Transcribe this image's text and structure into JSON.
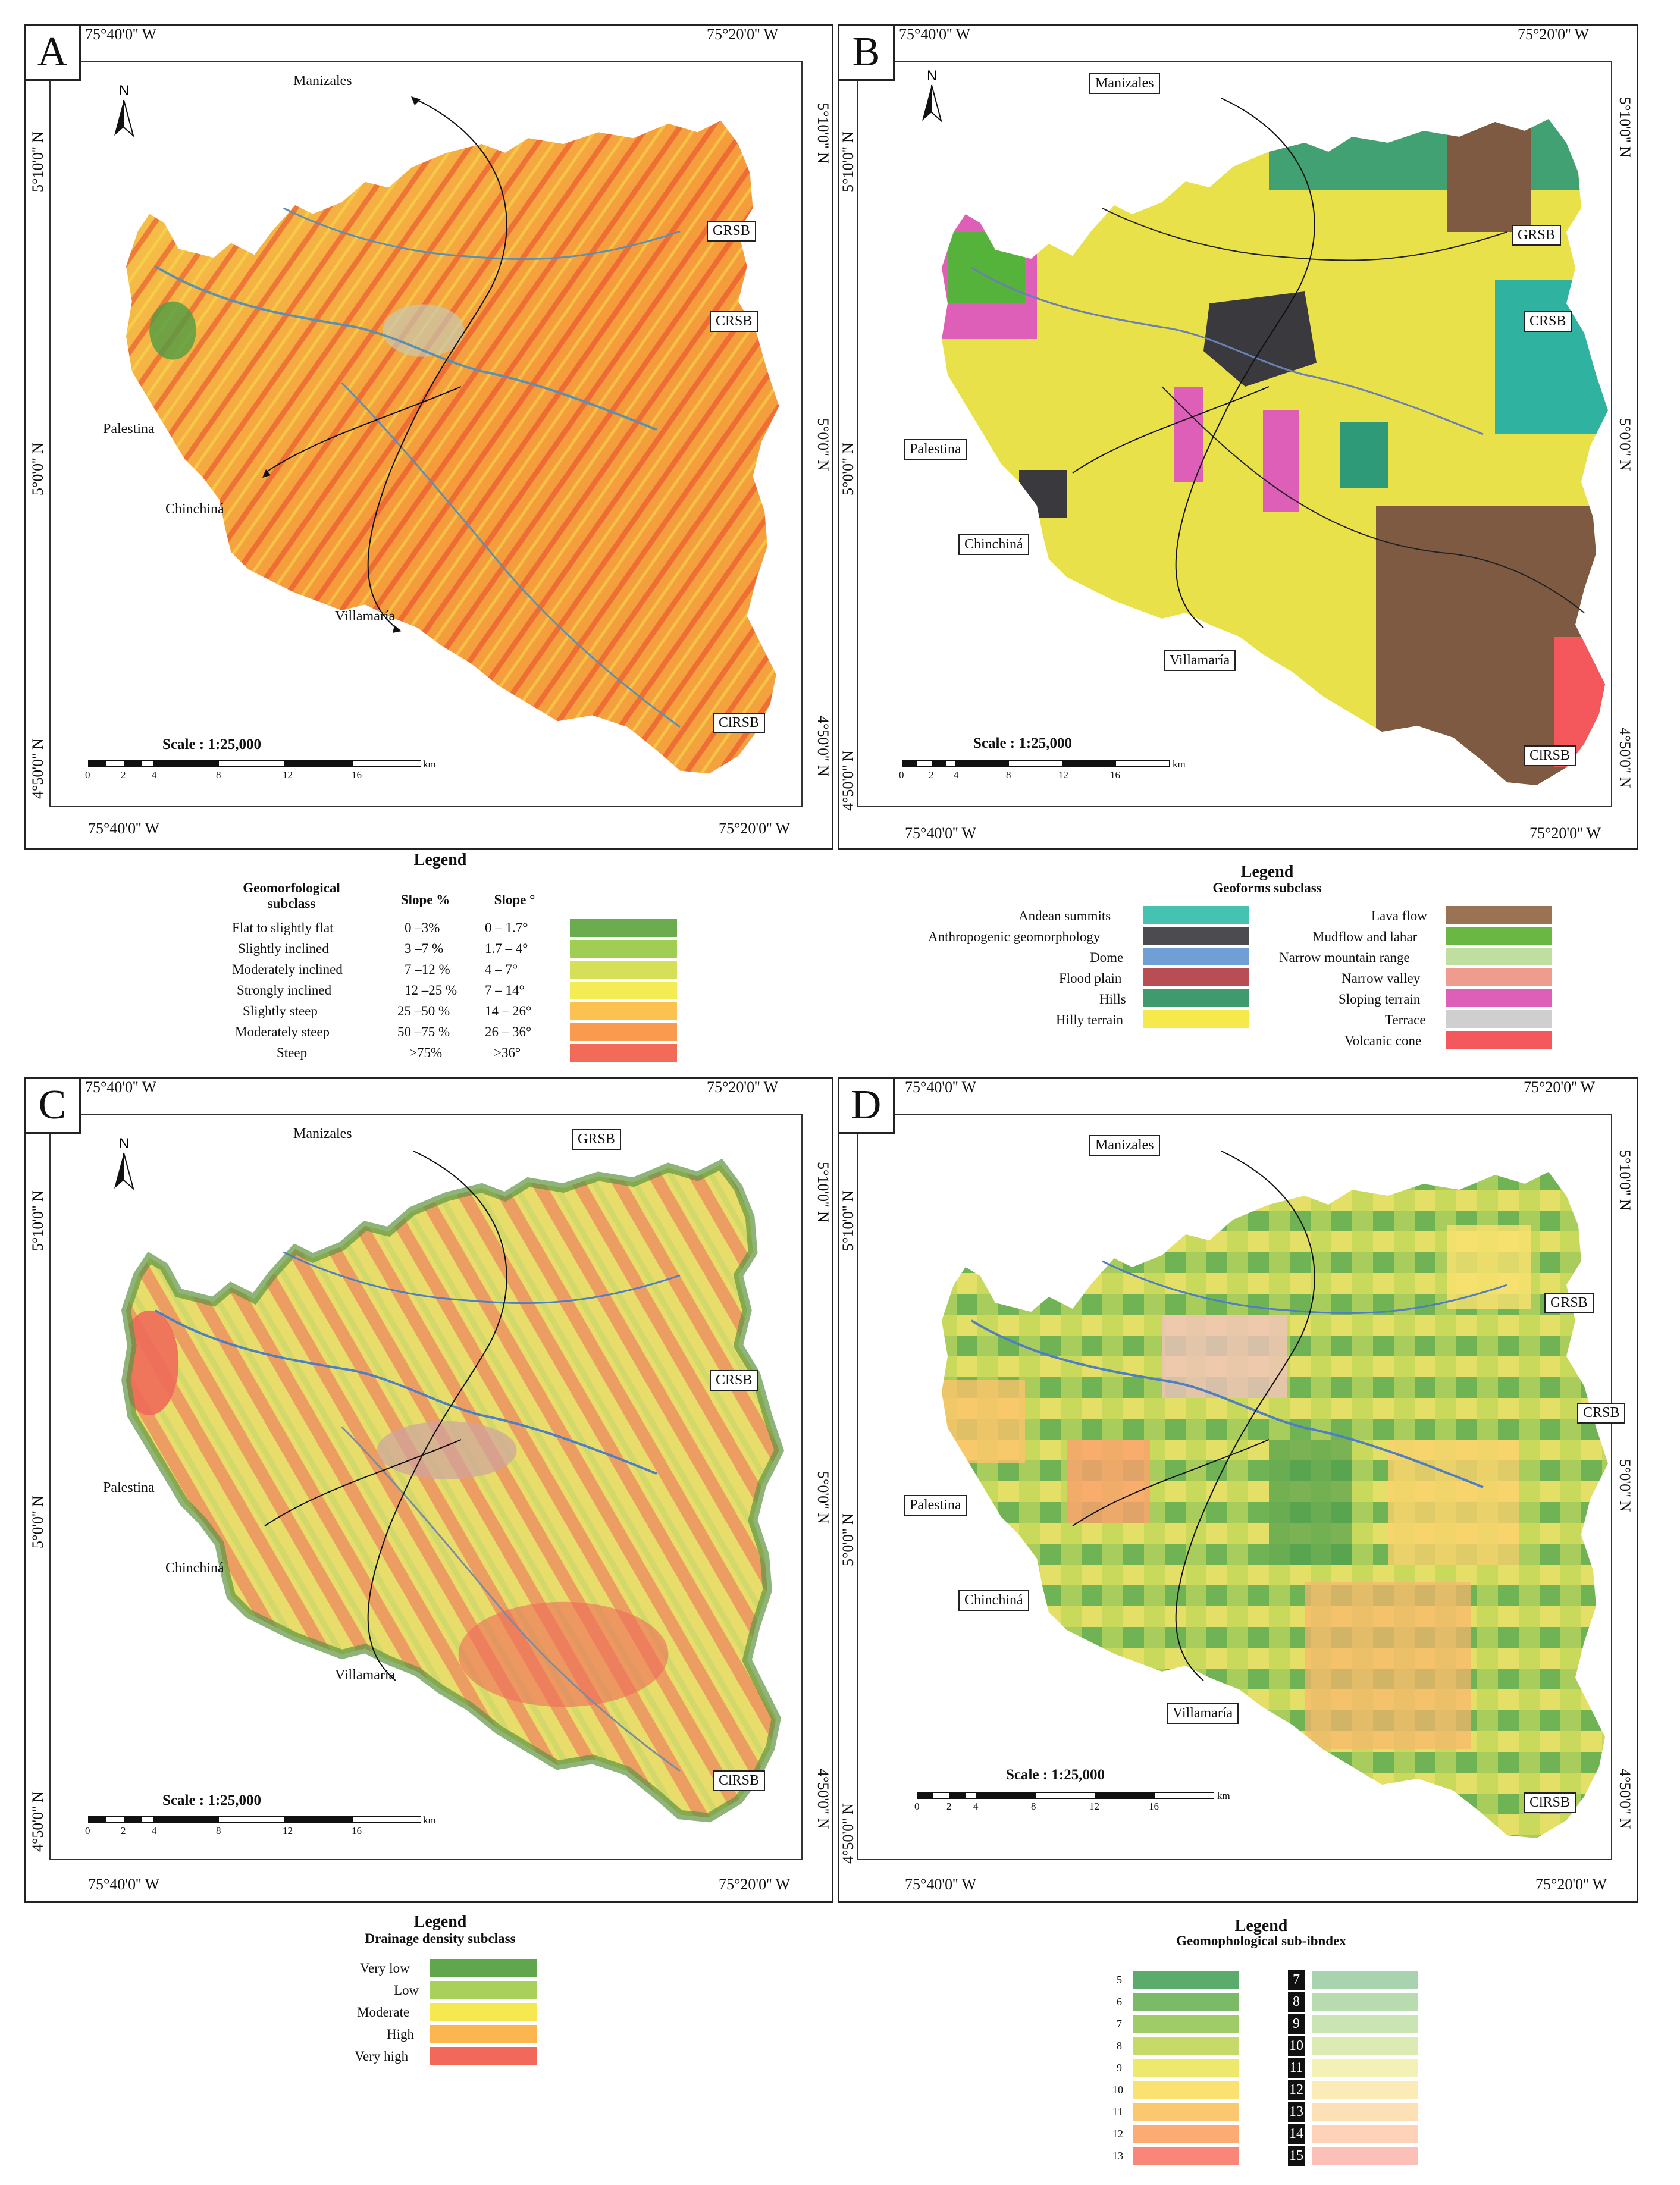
{
  "panels": {
    "a": {
      "letter": "A",
      "coord_top_left": "75°40'0'' W",
      "coord_top_right": "75°20'0'' W",
      "coord_bottom_left": "75°40'0'' W",
      "coord_bottom_right": "75°20'0'' W",
      "lat_upper": "5°10'0'' N",
      "lat_mid": "5°0'0'' N",
      "lat_lower": "4°50'0'' N",
      "place_manizales": "Manizales",
      "place_grsb": "GRSB",
      "place_crsb": "CRSB",
      "place_palestina": "Palestina",
      "place_chinchina": "Chinchiná",
      "place_villamaria": "Villamaría",
      "place_clrsb": "ClRSB",
      "north": "N"
    },
    "b": {
      "letter": "B",
      "coord_top_left": "75°40'0'' W",
      "coord_top_right": "75°20'0'' W",
      "coord_bottom_left": "75°40'0'' W",
      "coord_bottom_right": "75°20'0'' W",
      "lat_upper": "5°10'0'' N",
      "lat_mid": "5°0'0'' N",
      "lat_lower": "4°50'0'' N",
      "place_manizales": "Manizales",
      "place_grsb": "GRSB",
      "place_crsb": "CRSB",
      "place_palestina": "Palestina",
      "place_chinchina": "Chinchiná",
      "place_villamaria": "Villamaría",
      "place_clrsb": "ClRSB",
      "north": "N"
    },
    "c": {
      "letter": "C",
      "coord_top_left": "75°40'0'' W",
      "coord_top_right": "75°20'0'' W",
      "coord_bottom_left": "75°40'0'' W",
      "coord_bottom_right": "75°20'0'' W",
      "lat_upper": "5°10'0'' N",
      "lat_mid": "5°0'0'' N",
      "lat_lower": "4°50'0'' N",
      "place_manizales": "Manizales",
      "place_grsb": "GRSB",
      "place_crsb": "CRSB",
      "place_palestina": "Palestina",
      "place_chinchina": "Chinchiná",
      "place_villamaria": "Villamaria",
      "place_clrsb": "ClRSB",
      "north": "N"
    },
    "d": {
      "letter": "D",
      "coord_top_left": "75°40'0'' W",
      "coord_top_right": "75°20'0'' W",
      "coord_bottom_left": "75°40'0'' W",
      "coord_bottom_right": "75°20'0'' W",
      "lat_upper": "5°10'0'' N",
      "lat_mid": "5°0'0'' N",
      "lat_lower": "4°50'0'' N",
      "place_manizales": "Manizales",
      "place_grsb": "GRSB",
      "place_crsb": "CRSB",
      "place_palestina": "Palestina",
      "place_chinchina": "Chinchiná",
      "place_villamaria": "Villamaría",
      "place_clrsb": "ClRSB"
    }
  },
  "scale": {
    "title": "Scale : 1:25,000",
    "ticks": [
      "0",
      "2",
      "4",
      "8",
      "12",
      "16"
    ],
    "unit": "km"
  },
  "legend_a": {
    "title": "Legend",
    "col_class": "Geomorfological subclass",
    "col_pct": "Slope %",
    "col_deg": "Slope °",
    "rows": [
      {
        "label": "Flat to slightly flat",
        "pct": "0 –3%",
        "deg": "0 – 1.7°",
        "color": "#6aac4e"
      },
      {
        "label": "Slightly inclined",
        "pct": "3 –7 %",
        "deg": "1.7 – 4°",
        "color": "#9fce52"
      },
      {
        "label": "Moderately inclined",
        "pct": "7 –12 %",
        "deg": "4 – 7°",
        "color": "#d6df58"
      },
      {
        "label": "Strongly inclined",
        "pct": "12 –25 %",
        "deg": "7 – 14°",
        "color": "#f4ec55"
      },
      {
        "label": "Slightly steep",
        "pct": "25 –50 %",
        "deg": "14 – 26°",
        "color": "#fbc24f"
      },
      {
        "label": "Moderately steep",
        "pct": "50 –75 %",
        "deg": "26 – 36°",
        "color": "#f99a4e"
      },
      {
        "label": "Steep",
        "pct": ">75%",
        "deg": ">36°",
        "color": "#f26b59"
      }
    ]
  },
  "legend_b": {
    "title": "Legend",
    "subtitle": "Geoforms subclass",
    "left": [
      {
        "label": "Andean summits",
        "color": "#45c2b0"
      },
      {
        "label": "Anthropogenic geomorphology",
        "color": "#4b4b50"
      },
      {
        "label": "Dome",
        "color": "#6f9fd4"
      },
      {
        "label": "Flood plain",
        "color": "#b84e53"
      },
      {
        "label": "Hills",
        "color": "#3f9a6e"
      },
      {
        "label": "Hilly terrain",
        "color": "#f5e94c"
      }
    ],
    "right": [
      {
        "label": "Lava flow",
        "color": "#9a7254"
      },
      {
        "label": "Mudflow and lahar",
        "color": "#6ab843"
      },
      {
        "label": "Narrow mountain range",
        "color": "#bedf9f"
      },
      {
        "label": "Narrow valley",
        "color": "#ee9c8e"
      },
      {
        "label": "Sloping terrain",
        "color": "#dd5fb8"
      },
      {
        "label": "Terrace",
        "color": "#cfcfcf"
      },
      {
        "label": "Volcanic cone",
        "color": "#f4575c"
      }
    ]
  },
  "legend_c": {
    "title": "Legend",
    "subtitle": "Drainage density subclass",
    "rows": [
      {
        "label": "Very low",
        "color": "#5fa64c"
      },
      {
        "label": "Low",
        "color": "#a8d05a"
      },
      {
        "label": "Moderate",
        "color": "#f6e94f"
      },
      {
        "label": "High",
        "color": "#fbb64f"
      },
      {
        "label": "Very high",
        "color": "#f2685a"
      }
    ]
  },
  "legend_d": {
    "title": "Legend",
    "subtitle": "Geomophological sub-ibndex",
    "left": [
      {
        "label": "5",
        "color": "#5aab6c"
      },
      {
        "label": "6",
        "color": "#7bbb67"
      },
      {
        "label": "7",
        "color": "#a0cc68"
      },
      {
        "label": "8",
        "color": "#c5da69"
      },
      {
        "label": "9",
        "color": "#ede96c"
      },
      {
        "label": "10",
        "color": "#fbe072"
      },
      {
        "label": "11",
        "color": "#fcc86f"
      },
      {
        "label": "12",
        "color": "#fcab73"
      },
      {
        "label": "13",
        "color": "#f8877a"
      }
    ],
    "right": [
      {
        "label": "7",
        "color": "#a9d3ae"
      },
      {
        "label": "8",
        "color": "#b8dbb0"
      },
      {
        "label": "9",
        "color": "#cae4b3"
      },
      {
        "label": "10",
        "color": "#dceab4"
      },
      {
        "label": "11",
        "color": "#f4f1b7"
      },
      {
        "label": "12",
        "color": "#fcebb7"
      },
      {
        "label": "13",
        "color": "#fde0b6"
      },
      {
        "label": "14",
        "color": "#fdd2b9"
      },
      {
        "label": "15",
        "color": "#fcc0b8"
      }
    ]
  }
}
